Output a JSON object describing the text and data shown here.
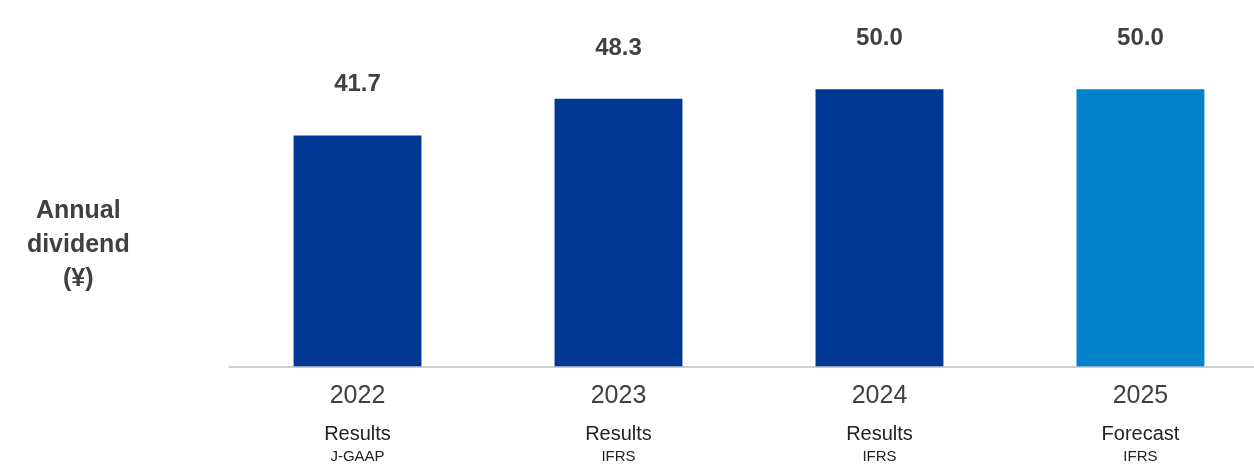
{
  "chart_data": {
    "type": "bar",
    "ylabel": "Annual dividend (¥)",
    "categories": [
      "2022\nResults\nJ-GAAP",
      "2023\nResults\nIFRS",
      "2024\nResults\nIFRS",
      "2025\nForecast\nIFRS"
    ],
    "values": [
      41.7,
      48.3,
      50.0,
      50.0
    ],
    "colors": [
      "#003893",
      "#003893",
      "#003893",
      "#0083c9"
    ],
    "value_labels": [
      "41.7",
      "48.3",
      "50.0",
      "50.0"
    ]
  }
}
